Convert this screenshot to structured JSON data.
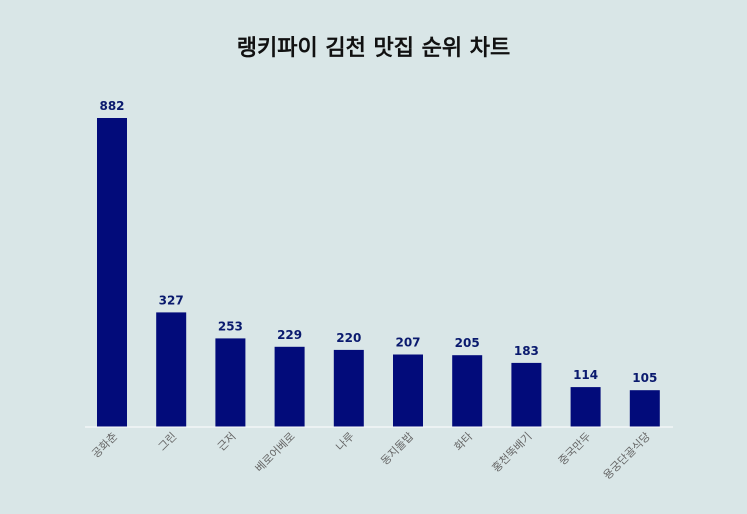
{
  "chart_data": {
    "type": "bar",
    "title": "랭키파이 김천 맛집 순위 차트",
    "categories": [
      "공화춘",
      "그린",
      "근저",
      "베로어베로",
      "나루",
      "동지돌밥",
      "화타",
      "홍천뚝배기",
      "중국만두",
      "용궁단골식당"
    ],
    "values": [
      882,
      327,
      253,
      229,
      220,
      207,
      205,
      183,
      114,
      105
    ],
    "xlabel": "",
    "ylabel": "",
    "ylim": [
      0,
      882
    ],
    "grid": false,
    "legend": "none",
    "bar_color": "#020b7a",
    "value_label_color": "#0a1a6e",
    "background": "#d9e6e7"
  }
}
